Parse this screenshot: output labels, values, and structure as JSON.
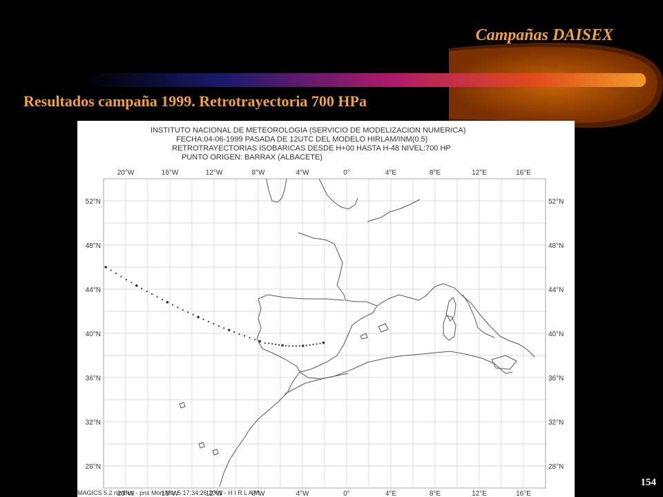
{
  "header": {
    "title": "Campañas DAISEX"
  },
  "slide": {
    "title": "Resultados campaña 1999. Retrotrayectoria 700 HPa",
    "number": "154"
  },
  "map": {
    "header_lines": [
      "INSTITUTO NACIONAL DE  METEOROLOGIA (SERVICIO DE MODELIZACION NUMERICA)",
      "FECHA:04-06-1999 PASADA DE 12UTC DEL MODELO HIRLAM/INM(0.5)",
      "RETROTRAYECTORIAS ISOBARICAS DESDE H+00 HASTA H-48  NIVEL:700 HP",
      "PUNTO ORIGEN: BARRAX (ALBACETE)"
    ],
    "lon_labels": [
      "20°W",
      "16°W",
      "12°W",
      "8°W",
      "4°W",
      "0°",
      "4°E",
      "8°E",
      "12°E",
      "16°E"
    ],
    "lat_labels": [
      "52°N",
      "48°N",
      "44°N",
      "40°N",
      "36°N",
      "32°N",
      "28°N"
    ],
    "footer": "MAGICS 5.2 nimbus - pns Mon Mar  5 17:34:26 2001  -  H I R L A M",
    "trajectory_colors": {
      "points": "#333333",
      "coast": "#555555",
      "grid": "#cccccc"
    }
  }
}
